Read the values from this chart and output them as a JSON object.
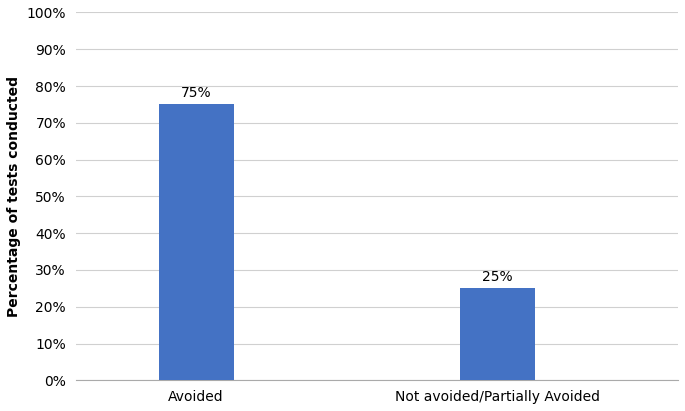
{
  "categories": [
    "Avoided",
    "Not avoided/Partially Avoided"
  ],
  "values": [
    75,
    25
  ],
  "bar_color": "#4472C4",
  "bar_width": 0.25,
  "ylabel": "Percentage of tests conducted",
  "ylim": [
    0,
    100
  ],
  "yticks": [
    0,
    10,
    20,
    30,
    40,
    50,
    60,
    70,
    80,
    90,
    100
  ],
  "annotations": [
    "75%",
    "25%"
  ],
  "background_color": "#ffffff",
  "grid_color": "#d0d0d0",
  "label_fontsize": 10,
  "annotation_fontsize": 10,
  "tick_fontsize": 10
}
